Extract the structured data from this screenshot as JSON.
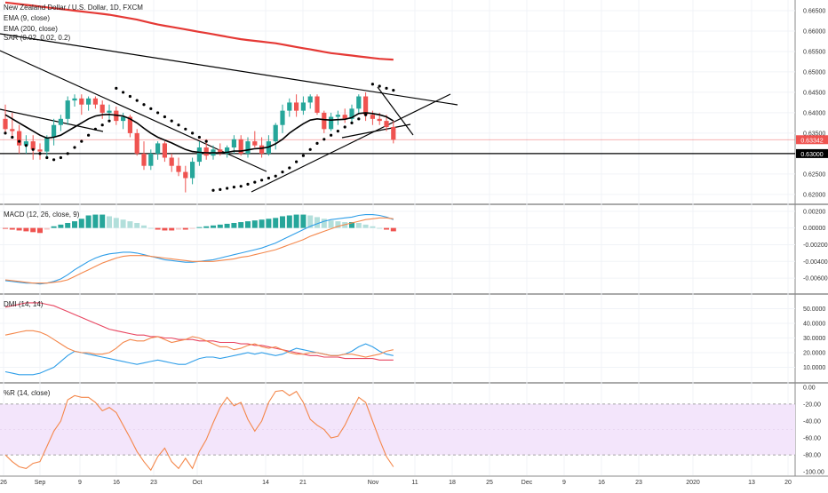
{
  "title": "New Zealand Dollar / U.S. Dollar, 1D, FXCM",
  "legends": {
    "ema9": "EMA (9, close)",
    "ema200": "EMA (200, close)",
    "sar": "SAR (0.02, 0.02, 0.2)",
    "macd": "MACD (12, 26, close, 9)",
    "dmi": "DMI (14, 14)",
    "wr": "%R (14, close)"
  },
  "colors": {
    "up": "#26a69a",
    "down": "#ef5350",
    "ema200": "#e53935",
    "ema9": "#000000",
    "macd_line": "#2f9ee8",
    "signal_line": "#f4874b",
    "hist_up_strong": "#26a69a",
    "hist_up_weak": "#b2dfdb",
    "hist_down_strong": "#ef5350",
    "hist_down_weak": "#f7c6c5",
    "di_plus": "#2f9ee8",
    "di_minus": "#f4874b",
    "adx": "#e84560",
    "wr_line": "#f4874b",
    "wr_band": "#f3e5fb",
    "wr_band_border": "#9c27b0",
    "price_tag": "#ef5350",
    "level_tag": "#000000"
  },
  "x_axis_labels": [
    "26",
    "Sep",
    "9",
    "16",
    "23",
    "Oct",
    "14",
    "21",
    "Nov",
    "11",
    "18",
    "25",
    "Dec",
    "9",
    "16",
    "23",
    "2020",
    "13",
    "20"
  ],
  "price_axis": {
    "ticks": [
      "0.66500",
      "0.66000",
      "0.65500",
      "0.65000",
      "0.64500",
      "0.64000",
      "0.63500",
      "0.62500",
      "0.62000"
    ],
    "last_price": "0.63342",
    "level": "0.63000"
  },
  "macd_axis": {
    "ticks": [
      "0.00200",
      "0.00000",
      "-0.00200",
      "-0.00400",
      "-0.00600"
    ]
  },
  "dmi_axis": {
    "ticks": [
      "50.0000",
      "40.0000",
      "30.0000",
      "20.0000",
      "10.0000"
    ]
  },
  "wr_axis": {
    "ticks": [
      "0.00",
      "-20.00",
      "-40.00",
      "-60.00",
      "-80.00",
      "-100.00"
    ]
  },
  "chart_data": [
    {
      "type": "candlestick",
      "title": "New Zealand Dollar / U.S. Dollar, 1D, FXCM",
      "ylim": [
        0.6178,
        0.6676
      ],
      "candles": [
        [
          0.6385,
          0.642,
          0.635,
          0.636
        ],
        [
          0.636,
          0.64,
          0.634,
          0.6355
        ],
        [
          0.6355,
          0.637,
          0.63,
          0.632
        ],
        [
          0.632,
          0.6345,
          0.63,
          0.633
        ],
        [
          0.633,
          0.6345,
          0.6285,
          0.631
        ],
        [
          0.631,
          0.6325,
          0.6285,
          0.6305
        ],
        [
          0.6305,
          0.6345,
          0.629,
          0.634
        ],
        [
          0.634,
          0.6385,
          0.632,
          0.637
        ],
        [
          0.637,
          0.6395,
          0.6355,
          0.6385
        ],
        [
          0.6385,
          0.644,
          0.637,
          0.643
        ],
        [
          0.643,
          0.6445,
          0.6415,
          0.6435
        ],
        [
          0.6435,
          0.6445,
          0.6395,
          0.642
        ],
        [
          0.642,
          0.644,
          0.6405,
          0.6435
        ],
        [
          0.6435,
          0.644,
          0.641,
          0.642
        ],
        [
          0.642,
          0.643,
          0.6385,
          0.64
        ],
        [
          0.64,
          0.642,
          0.6385,
          0.6405
        ],
        [
          0.6405,
          0.6415,
          0.637,
          0.638
        ],
        [
          0.638,
          0.64,
          0.636,
          0.639
        ],
        [
          0.639,
          0.6395,
          0.634,
          0.635
        ],
        [
          0.635,
          0.636,
          0.6295,
          0.63
        ],
        [
          0.63,
          0.633,
          0.626,
          0.627
        ],
        [
          0.627,
          0.631,
          0.626,
          0.63
        ],
        [
          0.63,
          0.633,
          0.6285,
          0.6325
        ],
        [
          0.6325,
          0.633,
          0.628,
          0.629
        ],
        [
          0.629,
          0.63,
          0.6255,
          0.627
        ],
        [
          0.627,
          0.629,
          0.6245,
          0.6255
        ],
        [
          0.6255,
          0.627,
          0.6205,
          0.624
        ],
        [
          0.624,
          0.629,
          0.6225,
          0.628
        ],
        [
          0.628,
          0.633,
          0.627,
          0.6315
        ],
        [
          0.6315,
          0.6335,
          0.6285,
          0.6295
        ],
        [
          0.6295,
          0.632,
          0.6285,
          0.631
        ],
        [
          0.631,
          0.6325,
          0.6295,
          0.63
        ],
        [
          0.63,
          0.632,
          0.629,
          0.6315
        ],
        [
          0.6315,
          0.6345,
          0.63,
          0.6335
        ],
        [
          0.6335,
          0.6345,
          0.6295,
          0.63
        ],
        [
          0.63,
          0.634,
          0.629,
          0.633
        ],
        [
          0.633,
          0.6355,
          0.6315,
          0.632
        ],
        [
          0.632,
          0.634,
          0.629,
          0.63
        ],
        [
          0.63,
          0.6345,
          0.6295,
          0.633
        ],
        [
          0.633,
          0.6375,
          0.631,
          0.637
        ],
        [
          0.637,
          0.642,
          0.635,
          0.6405
        ],
        [
          0.6405,
          0.6435,
          0.639,
          0.6425
        ],
        [
          0.6425,
          0.6445,
          0.639,
          0.6405
        ],
        [
          0.6405,
          0.644,
          0.6395,
          0.6425
        ],
        [
          0.6425,
          0.6445,
          0.641,
          0.644
        ],
        [
          0.644,
          0.6445,
          0.6395,
          0.64
        ],
        [
          0.64,
          0.6405,
          0.635,
          0.636
        ],
        [
          0.636,
          0.64,
          0.6355,
          0.639
        ],
        [
          0.639,
          0.6405,
          0.637,
          0.6395
        ],
        [
          0.6395,
          0.641,
          0.6375,
          0.6385
        ],
        [
          0.6385,
          0.642,
          0.6375,
          0.641
        ],
        [
          0.641,
          0.6445,
          0.64,
          0.644
        ],
        [
          0.644,
          0.645,
          0.638,
          0.6395
        ],
        [
          0.6395,
          0.6405,
          0.637,
          0.6385
        ],
        [
          0.6385,
          0.64,
          0.637,
          0.638
        ],
        [
          0.638,
          0.6395,
          0.6355,
          0.6365
        ],
        [
          0.6365,
          0.638,
          0.6325,
          0.6334
        ]
      ],
      "series": [
        {
          "name": "EMA (200, close)",
          "values": [
            0.667,
            0.6668,
            0.6666,
            0.6664,
            0.6662,
            0.666,
            0.6658,
            0.6656,
            0.6654,
            0.6652,
            0.665,
            0.6648,
            0.6646,
            0.6644,
            0.6642,
            0.664,
            0.6637,
            0.6634,
            0.6631,
            0.6628,
            0.6624,
            0.662,
            0.6616,
            0.6613,
            0.661,
            0.6607,
            0.6604,
            0.6601,
            0.6598,
            0.6595,
            0.6592,
            0.6589,
            0.6586,
            0.6583,
            0.658,
            0.6578,
            0.6576,
            0.6574,
            0.6572,
            0.657,
            0.6567,
            0.6564,
            0.6561,
            0.6558,
            0.6555,
            0.6552,
            0.6549,
            0.6546,
            0.6544,
            0.6542,
            0.654,
            0.6538,
            0.6536,
            0.6534,
            0.6532,
            0.6531,
            0.653
          ]
        },
        {
          "name": "EMA (9, close)",
          "values": [
            0.6395,
            0.6385,
            0.6375,
            0.6365,
            0.6355,
            0.6345,
            0.6338,
            0.634,
            0.6345,
            0.6355,
            0.6365,
            0.6375,
            0.6385,
            0.6392,
            0.6395,
            0.6396,
            0.6394,
            0.6392,
            0.6385,
            0.6375,
            0.6362,
            0.635,
            0.634,
            0.6333,
            0.6326,
            0.6318,
            0.631,
            0.6305,
            0.6303,
            0.6302,
            0.6302,
            0.6302,
            0.6303,
            0.6306,
            0.6306,
            0.6309,
            0.6312,
            0.6313,
            0.6316,
            0.6324,
            0.6335,
            0.635,
            0.6362,
            0.6373,
            0.6382,
            0.6385,
            0.6383,
            0.6382,
            0.6383,
            0.6384,
            0.6388,
            0.6398,
            0.64,
            0.6398,
            0.6395,
            0.639,
            0.638
          ]
        },
        {
          "name": "SAR (0.02, 0.02, 0.2)",
          "values": [
            0.635,
            0.634,
            0.633,
            0.632,
            0.631,
            0.63,
            0.629,
            0.6285,
            0.629,
            0.63,
            0.6315,
            0.633,
            0.6345,
            0.636,
            0.637,
            0.638,
            0.646,
            0.645,
            0.644,
            0.643,
            0.642,
            0.641,
            0.64,
            0.639,
            0.638,
            0.637,
            0.636,
            0.635,
            0.634,
            0.633,
            0.621,
            0.6212,
            0.6215,
            0.6218,
            0.622,
            0.6225,
            0.623,
            0.6235,
            0.624,
            0.6245,
            0.6255,
            0.6265,
            0.628,
            0.6295,
            0.631,
            0.6325,
            0.6335,
            0.6345,
            0.6355,
            0.6365,
            0.6375,
            0.6385,
            0.6395,
            0.647,
            0.6465,
            0.646,
            0.6455
          ]
        }
      ],
      "horizontal_levels": [
        0.63
      ]
    },
    {
      "type": "bar",
      "title": "MACD (12, 26, close, 9)",
      "ylim": [
        -0.0078,
        0.0023
      ],
      "series": [
        {
          "name": "Histogram",
          "values": [
            -0.0001,
            -0.0002,
            -0.0003,
            -0.0004,
            -0.0005,
            -0.0006,
            -0.0002,
            0.0002,
            0.0004,
            0.0006,
            0.0008,
            0.0011,
            0.0015,
            0.0016,
            0.0016,
            0.0014,
            0.0012,
            0.001,
            0.0008,
            0.0006,
            0.0003,
            0.0,
            -0.0002,
            -0.0003,
            -0.0003,
            -0.0002,
            -0.0002,
            -0.0001,
            0.0001,
            0.0002,
            0.0003,
            0.0004,
            0.0005,
            0.0006,
            0.0007,
            0.0008,
            0.0009,
            0.001,
            0.0011,
            0.0012,
            0.0014,
            0.0015,
            0.0016,
            0.0016,
            0.0015,
            0.0013,
            0.0011,
            0.0009,
            0.0008,
            0.0007,
            0.0007,
            0.0006,
            0.0004,
            0.0002,
            0.0,
            -0.0002,
            -0.0004
          ]
        },
        {
          "name": "MACD",
          "values": [
            -0.0063,
            -0.0064,
            -0.0065,
            -0.0066,
            -0.0066,
            -0.0067,
            -0.0066,
            -0.0064,
            -0.0061,
            -0.0056,
            -0.005,
            -0.0045,
            -0.004,
            -0.0036,
            -0.0033,
            -0.0031,
            -0.003,
            -0.0029,
            -0.0029,
            -0.003,
            -0.0032,
            -0.0034,
            -0.0036,
            -0.0038,
            -0.0039,
            -0.004,
            -0.0041,
            -0.0041,
            -0.004,
            -0.0039,
            -0.0038,
            -0.0036,
            -0.0034,
            -0.0032,
            -0.003,
            -0.0028,
            -0.0026,
            -0.0024,
            -0.0021,
            -0.0018,
            -0.0014,
            -0.001,
            -0.0006,
            -0.0002,
            0.0002,
            0.0005,
            0.0008,
            0.001,
            0.0011,
            0.0012,
            0.0013,
            0.0015,
            0.0016,
            0.0016,
            0.0015,
            0.0013,
            0.001
          ]
        },
        {
          "name": "Signal",
          "values": [
            -0.0062,
            -0.0063,
            -0.0064,
            -0.0065,
            -0.0066,
            -0.0066,
            -0.0066,
            -0.0065,
            -0.0064,
            -0.0062,
            -0.0058,
            -0.0054,
            -0.005,
            -0.0046,
            -0.0042,
            -0.0039,
            -0.0036,
            -0.0034,
            -0.0033,
            -0.0033,
            -0.0033,
            -0.0034,
            -0.0035,
            -0.0036,
            -0.0037,
            -0.0038,
            -0.0039,
            -0.004,
            -0.004,
            -0.004,
            -0.004,
            -0.0039,
            -0.0038,
            -0.0037,
            -0.0035,
            -0.0034,
            -0.0032,
            -0.003,
            -0.0028,
            -0.0026,
            -0.0023,
            -0.002,
            -0.0017,
            -0.0014,
            -0.001,
            -0.0007,
            -0.0004,
            -0.0001,
            0.0002,
            0.0004,
            0.0006,
            0.0008,
            0.001,
            0.0011,
            0.0012,
            0.0012,
            0.0011
          ]
        }
      ]
    },
    {
      "type": "line",
      "title": "DMI (14, 14)",
      "ylim": [
        0,
        57
      ],
      "series": [
        {
          "name": "ADX",
          "values": [
            51,
            52,
            53,
            54,
            54,
            54,
            53,
            52,
            50,
            48,
            46,
            44,
            42,
            40,
            38,
            36,
            35,
            34,
            33,
            32,
            32,
            31,
            31,
            30,
            30,
            29,
            29,
            29,
            28,
            28,
            28,
            27,
            27,
            27,
            26,
            26,
            25,
            25,
            24,
            23,
            22,
            21,
            20,
            19,
            18,
            18,
            17,
            17,
            17,
            16,
            16,
            16,
            16,
            16,
            15,
            15,
            15
          ]
        },
        {
          "name": "DI+",
          "values": [
            7,
            6,
            5,
            5,
            5,
            6,
            8,
            10,
            14,
            18,
            21,
            20,
            19,
            18,
            17,
            16,
            15,
            14,
            13,
            12,
            13,
            14,
            15,
            14,
            13,
            12,
            12,
            14,
            16,
            17,
            17,
            16,
            17,
            18,
            19,
            20,
            19,
            20,
            19,
            18,
            19,
            21,
            23,
            22,
            21,
            20,
            19,
            18,
            18,
            19,
            21,
            24,
            26,
            24,
            21,
            19,
            18
          ]
        },
        {
          "name": "DI-",
          "values": [
            32,
            33,
            34,
            35,
            35,
            34,
            32,
            29,
            26,
            23,
            21,
            20,
            20,
            19,
            19,
            20,
            23,
            27,
            29,
            28,
            28,
            30,
            31,
            29,
            27,
            28,
            29,
            31,
            30,
            28,
            26,
            24,
            24,
            22,
            23,
            25,
            26,
            24,
            23,
            24,
            22,
            20,
            19,
            19,
            20,
            20,
            19,
            18,
            18,
            19,
            19,
            18,
            17,
            18,
            19,
            21,
            22
          ]
        }
      ]
    },
    {
      "type": "line",
      "title": "%R (14, close)",
      "ylim": [
        -104,
        4
      ],
      "band": [
        -80,
        -20
      ],
      "series": [
        {
          "name": "%R",
          "values": [
            -80,
            -88,
            -94,
            -96,
            -90,
            -88,
            -70,
            -52,
            -40,
            -15,
            -10,
            -12,
            -12,
            -18,
            -28,
            -24,
            -30,
            -45,
            -60,
            -76,
            -88,
            -98,
            -82,
            -72,
            -88,
            -96,
            -84,
            -96,
            -76,
            -62,
            -42,
            -24,
            -12,
            -22,
            -18,
            -38,
            -52,
            -40,
            -18,
            -5,
            -4,
            -10,
            -5,
            -18,
            -38,
            -45,
            -50,
            -60,
            -58,
            -45,
            -28,
            -12,
            -18,
            -40,
            -62,
            -82,
            -94
          ]
        }
      ]
    }
  ]
}
